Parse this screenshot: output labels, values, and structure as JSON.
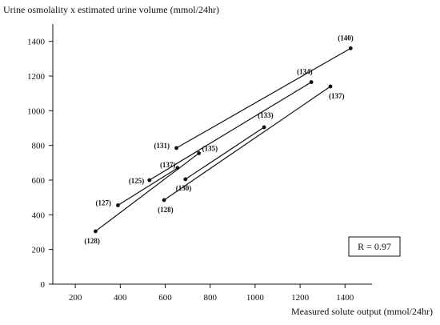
{
  "chart_data": {
    "type": "line",
    "ylabel": "Urine osmolality x estimated urine volume (mmol/24hr)",
    "xlabel": "Measured solute output (mmol/24hr)",
    "xlim": [
      100,
      1520
    ],
    "ylim": [
      0,
      1500
    ],
    "x_ticks": [
      200,
      400,
      600,
      800,
      1000,
      1200,
      1400
    ],
    "y_ticks": [
      0,
      200,
      400,
      600,
      800,
      1000,
      1200,
      1400
    ],
    "grid": false,
    "annotation": "R = 0.97",
    "series": [
      {
        "points": [
          {
            "x": 650,
            "y": 785,
            "label": "(131)"
          },
          {
            "x": 1425,
            "y": 1360,
            "label": "(140)"
          }
        ]
      },
      {
        "points": [
          {
            "x": 530,
            "y": 600,
            "label": "(125)"
          },
          {
            "x": 1250,
            "y": 1165,
            "label": "(134)"
          }
        ]
      },
      {
        "points": [
          {
            "x": 290,
            "y": 305,
            "label": "(128)"
          },
          {
            "x": 750,
            "y": 755,
            "label": "(135)"
          }
        ]
      },
      {
        "points": [
          {
            "x": 390,
            "y": 455,
            "label": "(127)"
          },
          {
            "x": 655,
            "y": 670,
            "label": "(137)"
          }
        ]
      },
      {
        "points": [
          {
            "x": 690,
            "y": 605,
            "label": "(130)"
          },
          {
            "x": 1040,
            "y": 905,
            "label": "(133)"
          }
        ]
      },
      {
        "points": [
          {
            "x": 595,
            "y": 485,
            "label": "(128)"
          },
          {
            "x": 1335,
            "y": 1140,
            "label": "(137)"
          }
        ]
      }
    ]
  }
}
